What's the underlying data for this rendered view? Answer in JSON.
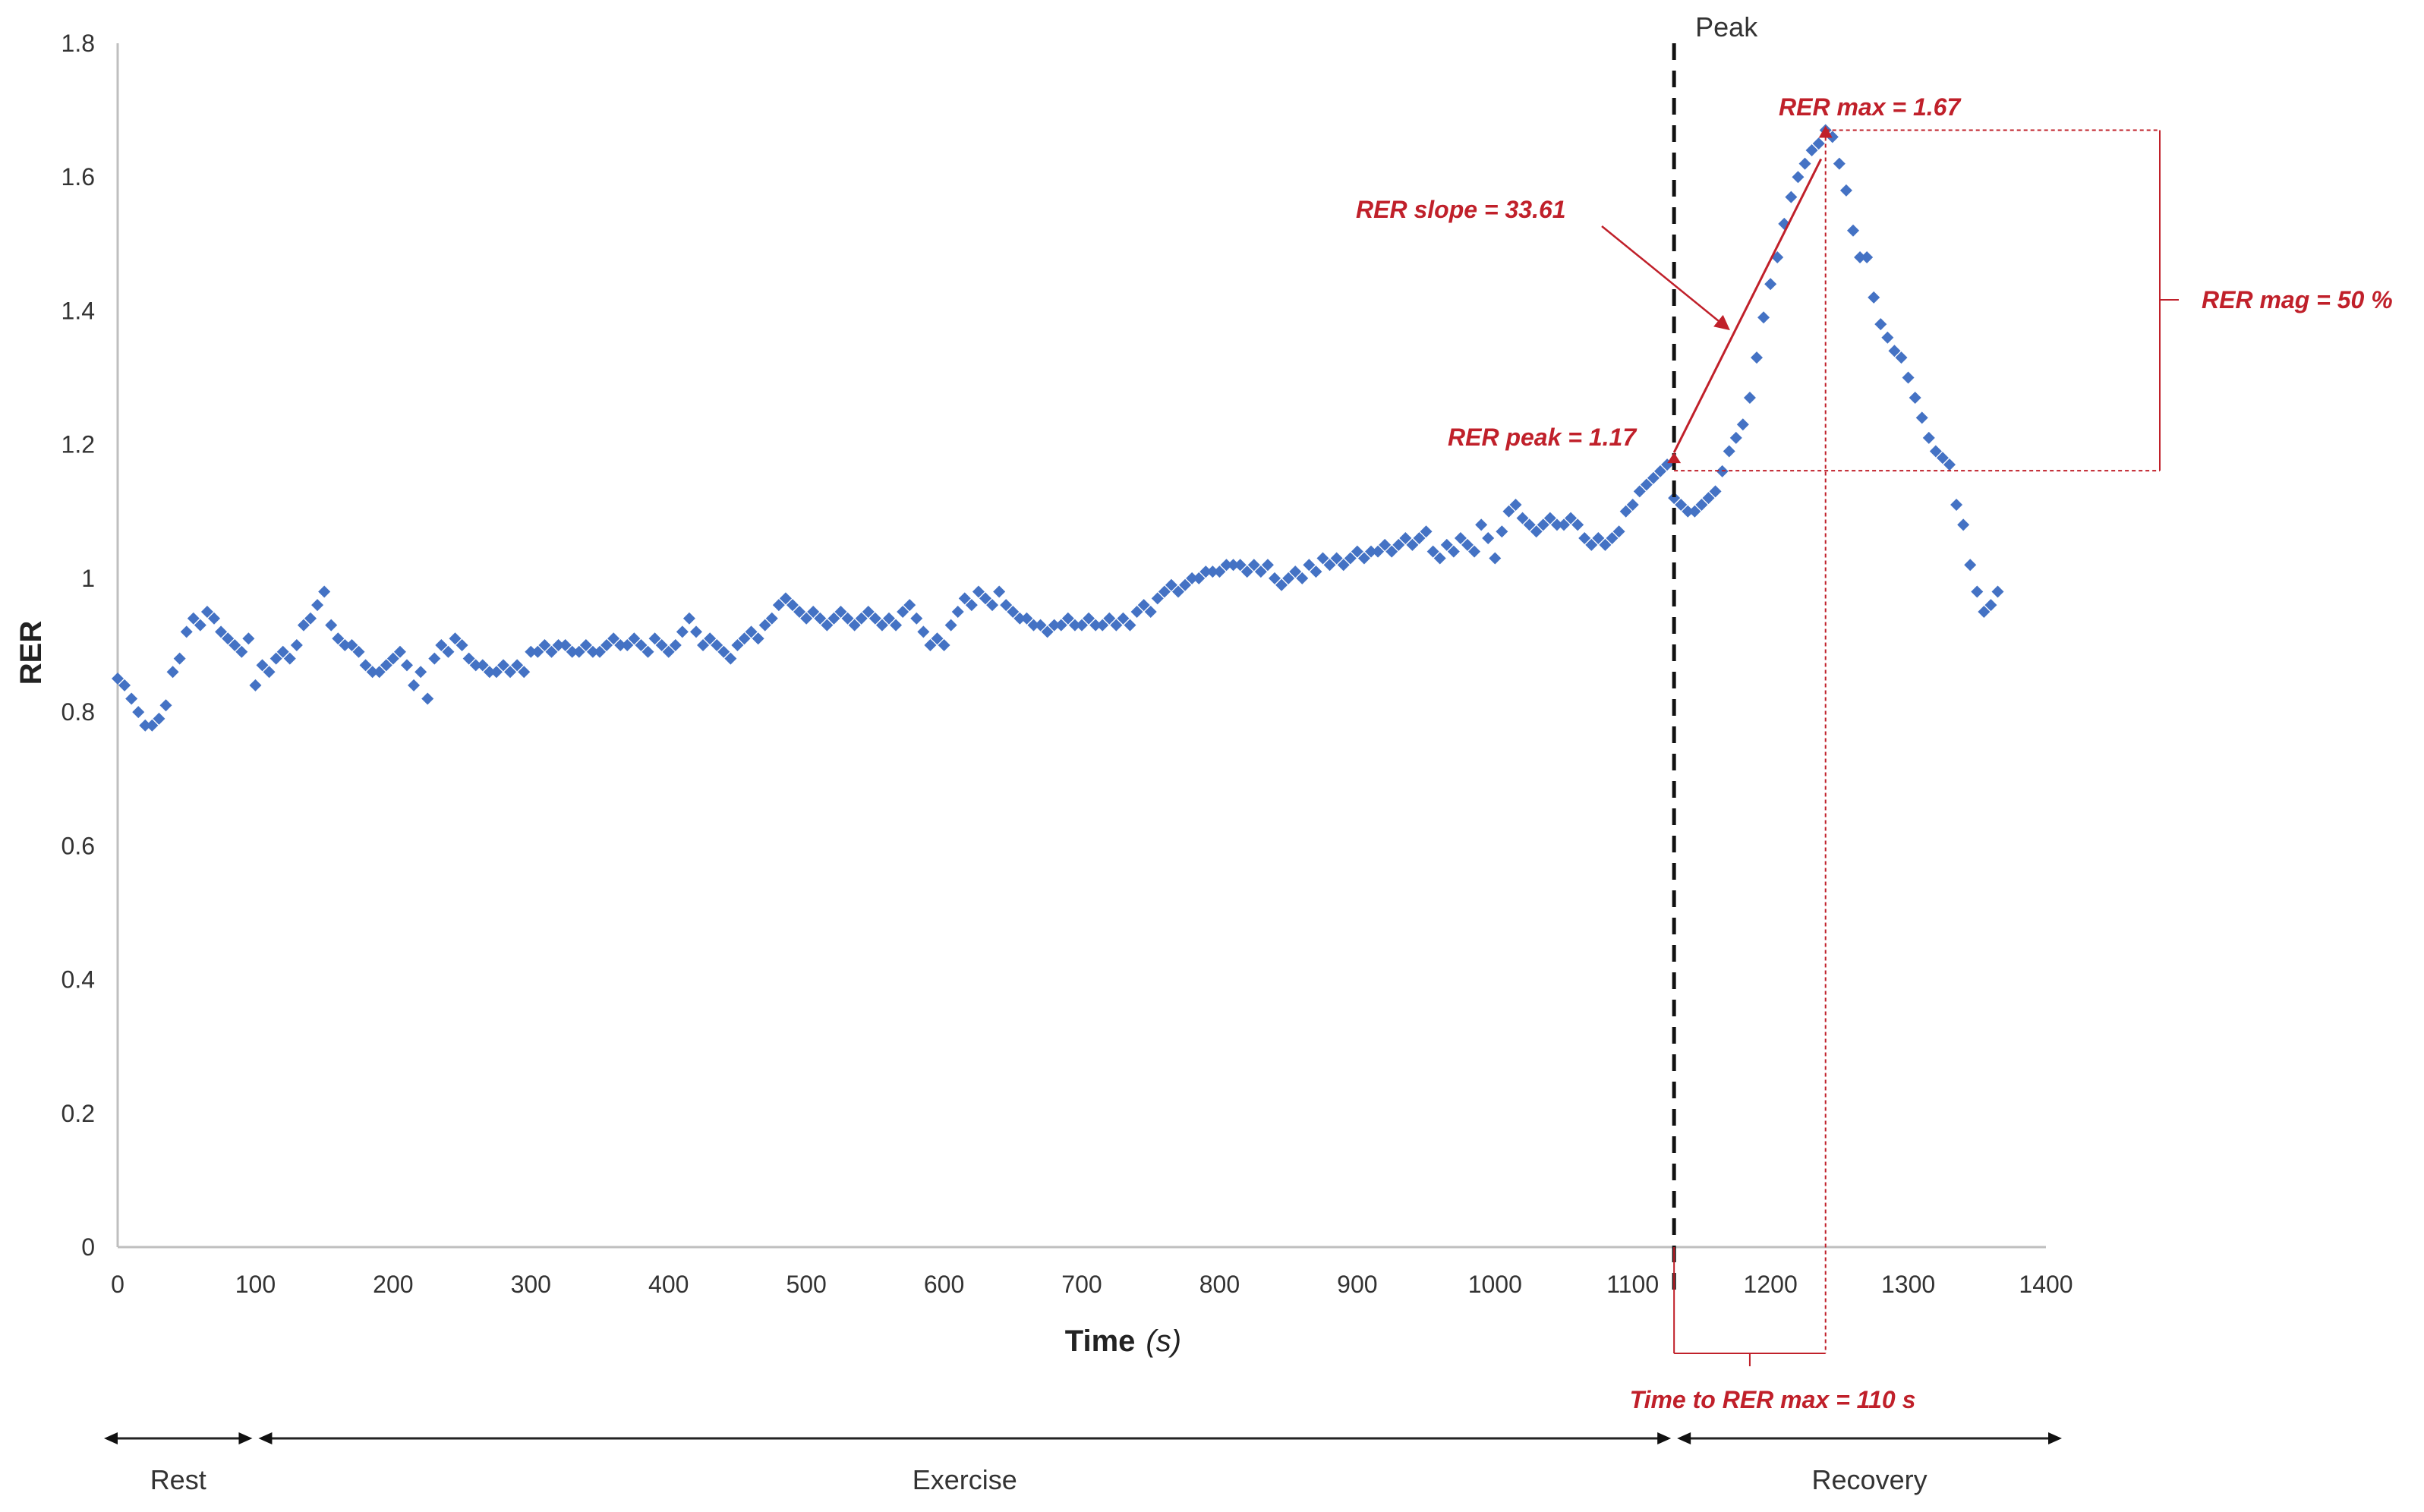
{
  "chart_data": {
    "type": "scatter",
    "title": "",
    "xlabel": "Time",
    "xlabel_unit": "(s)",
    "ylabel": "RER",
    "xlim": [
      0,
      1400
    ],
    "ylim": [
      0,
      1.8
    ],
    "x_ticks": [
      "0",
      "100",
      "200",
      "300",
      "400",
      "500",
      "600",
      "700",
      "800",
      "900",
      "1000",
      "1100",
      "1200",
      "1300",
      "1400"
    ],
    "y_ticks": [
      "0",
      "0.2",
      "0.4",
      "0.6",
      "0.8",
      "1",
      "1.2",
      "1.4",
      "1.6",
      "1.8"
    ],
    "grid": false,
    "marker_color": "#4472c4",
    "series": [
      {
        "name": "RER",
        "points": [
          [
            0,
            0.85
          ],
          [
            5,
            0.84
          ],
          [
            10,
            0.82
          ],
          [
            15,
            0.8
          ],
          [
            20,
            0.78
          ],
          [
            25,
            0.78
          ],
          [
            30,
            0.79
          ],
          [
            35,
            0.81
          ],
          [
            40,
            0.86
          ],
          [
            45,
            0.88
          ],
          [
            50,
            0.92
          ],
          [
            55,
            0.94
          ],
          [
            60,
            0.93
          ],
          [
            65,
            0.95
          ],
          [
            70,
            0.94
          ],
          [
            75,
            0.92
          ],
          [
            80,
            0.91
          ],
          [
            85,
            0.9
          ],
          [
            90,
            0.89
          ],
          [
            95,
            0.91
          ],
          [
            100,
            0.84
          ],
          [
            105,
            0.87
          ],
          [
            110,
            0.86
          ],
          [
            115,
            0.88
          ],
          [
            120,
            0.89
          ],
          [
            125,
            0.88
          ],
          [
            130,
            0.9
          ],
          [
            135,
            0.93
          ],
          [
            140,
            0.94
          ],
          [
            145,
            0.96
          ],
          [
            150,
            0.98
          ],
          [
            155,
            0.93
          ],
          [
            160,
            0.91
          ],
          [
            165,
            0.9
          ],
          [
            170,
            0.9
          ],
          [
            175,
            0.89
          ],
          [
            180,
            0.87
          ],
          [
            185,
            0.86
          ],
          [
            190,
            0.86
          ],
          [
            195,
            0.87
          ],
          [
            200,
            0.88
          ],
          [
            205,
            0.89
          ],
          [
            210,
            0.87
          ],
          [
            215,
            0.84
          ],
          [
            220,
            0.86
          ],
          [
            225,
            0.82
          ],
          [
            230,
            0.88
          ],
          [
            235,
            0.9
          ],
          [
            240,
            0.89
          ],
          [
            245,
            0.91
          ],
          [
            250,
            0.9
          ],
          [
            255,
            0.88
          ],
          [
            260,
            0.87
          ],
          [
            265,
            0.87
          ],
          [
            270,
            0.86
          ],
          [
            275,
            0.86
          ],
          [
            280,
            0.87
          ],
          [
            285,
            0.86
          ],
          [
            290,
            0.87
          ],
          [
            295,
            0.86
          ],
          [
            300,
            0.89
          ],
          [
            305,
            0.89
          ],
          [
            310,
            0.9
          ],
          [
            315,
            0.89
          ],
          [
            320,
            0.9
          ],
          [
            325,
            0.9
          ],
          [
            330,
            0.89
          ],
          [
            335,
            0.89
          ],
          [
            340,
            0.9
          ],
          [
            345,
            0.89
          ],
          [
            350,
            0.89
          ],
          [
            355,
            0.9
          ],
          [
            360,
            0.91
          ],
          [
            365,
            0.9
          ],
          [
            370,
            0.9
          ],
          [
            375,
            0.91
          ],
          [
            380,
            0.9
          ],
          [
            385,
            0.89
          ],
          [
            390,
            0.91
          ],
          [
            395,
            0.9
          ],
          [
            400,
            0.89
          ],
          [
            405,
            0.9
          ],
          [
            410,
            0.92
          ],
          [
            415,
            0.94
          ],
          [
            420,
            0.92
          ],
          [
            425,
            0.9
          ],
          [
            430,
            0.91
          ],
          [
            435,
            0.9
          ],
          [
            440,
            0.89
          ],
          [
            445,
            0.88
          ],
          [
            450,
            0.9
          ],
          [
            455,
            0.91
          ],
          [
            460,
            0.92
          ],
          [
            465,
            0.91
          ],
          [
            470,
            0.93
          ],
          [
            475,
            0.94
          ],
          [
            480,
            0.96
          ],
          [
            485,
            0.97
          ],
          [
            490,
            0.96
          ],
          [
            495,
            0.95
          ],
          [
            500,
            0.94
          ],
          [
            505,
            0.95
          ],
          [
            510,
            0.94
          ],
          [
            515,
            0.93
          ],
          [
            520,
            0.94
          ],
          [
            525,
            0.95
          ],
          [
            530,
            0.94
          ],
          [
            535,
            0.93
          ],
          [
            540,
            0.94
          ],
          [
            545,
            0.95
          ],
          [
            550,
            0.94
          ],
          [
            555,
            0.93
          ],
          [
            560,
            0.94
          ],
          [
            565,
            0.93
          ],
          [
            570,
            0.95
          ],
          [
            575,
            0.96
          ],
          [
            580,
            0.94
          ],
          [
            585,
            0.92
          ],
          [
            590,
            0.9
          ],
          [
            595,
            0.91
          ],
          [
            600,
            0.9
          ],
          [
            605,
            0.93
          ],
          [
            610,
            0.95
          ],
          [
            615,
            0.97
          ],
          [
            620,
            0.96
          ],
          [
            625,
            0.98
          ],
          [
            630,
            0.97
          ],
          [
            635,
            0.96
          ],
          [
            640,
            0.98
          ],
          [
            645,
            0.96
          ],
          [
            650,
            0.95
          ],
          [
            655,
            0.94
          ],
          [
            660,
            0.94
          ],
          [
            665,
            0.93
          ],
          [
            670,
            0.93
          ],
          [
            675,
            0.92
          ],
          [
            680,
            0.93
          ],
          [
            685,
            0.93
          ],
          [
            690,
            0.94
          ],
          [
            695,
            0.93
          ],
          [
            700,
            0.93
          ],
          [
            705,
            0.94
          ],
          [
            710,
            0.93
          ],
          [
            715,
            0.93
          ],
          [
            720,
            0.94
          ],
          [
            725,
            0.93
          ],
          [
            730,
            0.94
          ],
          [
            735,
            0.93
          ],
          [
            740,
            0.95
          ],
          [
            745,
            0.96
          ],
          [
            750,
            0.95
          ],
          [
            755,
            0.97
          ],
          [
            760,
            0.98
          ],
          [
            765,
            0.99
          ],
          [
            770,
            0.98
          ],
          [
            775,
            0.99
          ],
          [
            780,
            1.0
          ],
          [
            785,
            1.0
          ],
          [
            790,
            1.01
          ],
          [
            795,
            1.01
          ],
          [
            800,
            1.01
          ],
          [
            805,
            1.02
          ],
          [
            810,
            1.02
          ],
          [
            815,
            1.02
          ],
          [
            820,
            1.01
          ],
          [
            825,
            1.02
          ],
          [
            830,
            1.01
          ],
          [
            835,
            1.02
          ],
          [
            840,
            1.0
          ],
          [
            845,
            0.99
          ],
          [
            850,
            1.0
          ],
          [
            855,
            1.01
          ],
          [
            860,
            1.0
          ],
          [
            865,
            1.02
          ],
          [
            870,
            1.01
          ],
          [
            875,
            1.03
          ],
          [
            880,
            1.02
          ],
          [
            885,
            1.03
          ],
          [
            890,
            1.02
          ],
          [
            895,
            1.03
          ],
          [
            900,
            1.04
          ],
          [
            905,
            1.03
          ],
          [
            910,
            1.04
          ],
          [
            915,
            1.04
          ],
          [
            920,
            1.05
          ],
          [
            925,
            1.04
          ],
          [
            930,
            1.05
          ],
          [
            935,
            1.06
          ],
          [
            940,
            1.05
          ],
          [
            945,
            1.06
          ],
          [
            950,
            1.07
          ],
          [
            955,
            1.04
          ],
          [
            960,
            1.03
          ],
          [
            965,
            1.05
          ],
          [
            970,
            1.04
          ],
          [
            975,
            1.06
          ],
          [
            980,
            1.05
          ],
          [
            985,
            1.04
          ],
          [
            990,
            1.08
          ],
          [
            995,
            1.06
          ],
          [
            1000,
            1.03
          ],
          [
            1005,
            1.07
          ],
          [
            1010,
            1.1
          ],
          [
            1015,
            1.11
          ],
          [
            1020,
            1.09
          ],
          [
            1025,
            1.08
          ],
          [
            1030,
            1.07
          ],
          [
            1035,
            1.08
          ],
          [
            1040,
            1.09
          ],
          [
            1045,
            1.08
          ],
          [
            1050,
            1.08
          ],
          [
            1055,
            1.09
          ],
          [
            1060,
            1.08
          ],
          [
            1065,
            1.06
          ],
          [
            1070,
            1.05
          ],
          [
            1075,
            1.06
          ],
          [
            1080,
            1.05
          ],
          [
            1085,
            1.06
          ],
          [
            1090,
            1.07
          ],
          [
            1095,
            1.1
          ],
          [
            1100,
            1.11
          ],
          [
            1105,
            1.13
          ],
          [
            1110,
            1.14
          ],
          [
            1115,
            1.15
          ],
          [
            1120,
            1.16
          ],
          [
            1125,
            1.17
          ],
          [
            1130,
            1.12
          ],
          [
            1135,
            1.11
          ],
          [
            1140,
            1.1
          ],
          [
            1145,
            1.1
          ],
          [
            1150,
            1.11
          ],
          [
            1155,
            1.12
          ],
          [
            1160,
            1.13
          ],
          [
            1165,
            1.16
          ],
          [
            1170,
            1.19
          ],
          [
            1175,
            1.21
          ],
          [
            1180,
            1.23
          ],
          [
            1185,
            1.27
          ],
          [
            1190,
            1.33
          ],
          [
            1195,
            1.39
          ],
          [
            1200,
            1.44
          ],
          [
            1205,
            1.48
          ],
          [
            1210,
            1.53
          ],
          [
            1215,
            1.57
          ],
          [
            1220,
            1.6
          ],
          [
            1225,
            1.62
          ],
          [
            1230,
            1.64
          ],
          [
            1235,
            1.65
          ],
          [
            1240,
            1.67
          ],
          [
            1245,
            1.66
          ],
          [
            1250,
            1.62
          ],
          [
            1255,
            1.58
          ],
          [
            1260,
            1.52
          ],
          [
            1265,
            1.48
          ],
          [
            1270,
            1.48
          ],
          [
            1275,
            1.42
          ],
          [
            1280,
            1.38
          ],
          [
            1285,
            1.36
          ],
          [
            1290,
            1.34
          ],
          [
            1295,
            1.33
          ],
          [
            1300,
            1.3
          ],
          [
            1305,
            1.27
          ],
          [
            1310,
            1.24
          ],
          [
            1315,
            1.21
          ],
          [
            1320,
            1.19
          ],
          [
            1325,
            1.18
          ],
          [
            1330,
            1.17
          ],
          [
            1335,
            1.11
          ],
          [
            1340,
            1.08
          ],
          [
            1345,
            1.02
          ],
          [
            1350,
            0.98
          ],
          [
            1355,
            0.95
          ],
          [
            1360,
            0.96
          ],
          [
            1365,
            0.98
          ]
        ]
      }
    ],
    "peak_line": {
      "x": 1130,
      "label": "Peak"
    },
    "annotations": {
      "rer_max": {
        "label": "RER max = 1.67",
        "x": 1240,
        "y": 1.67
      },
      "rer_peak": {
        "label": "RER peak = 1.17",
        "x": 1130,
        "y": 1.17
      },
      "rer_slope": {
        "label": "RER slope = 33.61"
      },
      "rer_mag": {
        "label": "RER mag = 50 %"
      },
      "time_to_max": {
        "label": "Time to RER max = 110 s"
      }
    },
    "phases": [
      {
        "label": "Rest",
        "x_start": 0,
        "x_end": 100
      },
      {
        "label": "Exercise",
        "x_start": 100,
        "x_end": 1130
      },
      {
        "label": "Recovery",
        "x_start": 1130,
        "x_end": 1400
      }
    ],
    "annotation_color": "#c0202a"
  }
}
